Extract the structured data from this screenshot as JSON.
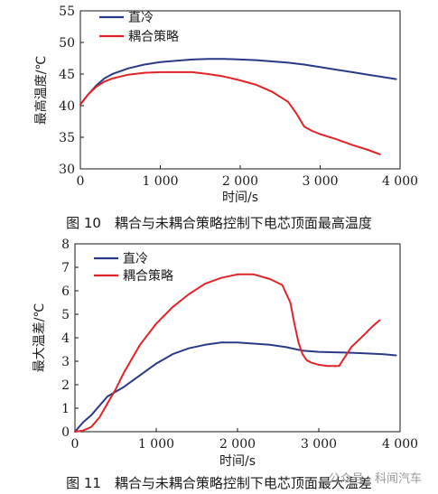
{
  "chart_data": [
    {
      "type": "line",
      "xlabel": "时间/s",
      "ylabel": "最高温度/℃",
      "xlim": [
        0,
        4000
      ],
      "ylim": [
        30,
        55
      ],
      "xticks": [
        0,
        1000,
        2000,
        3000,
        4000
      ],
      "xtick_labels": [
        "0",
        "1 000",
        "2 000",
        "3 000",
        "4 000"
      ],
      "yticks": [
        30,
        35,
        40,
        45,
        50,
        55
      ],
      "grid": false,
      "legend_position": "top-left",
      "series": [
        {
          "name": "直冷",
          "color": "#2b3a87",
          "x": [
            0,
            100,
            200,
            300,
            400,
            600,
            800,
            1000,
            1200,
            1400,
            1600,
            1800,
            2000,
            2200,
            2400,
            2600,
            2800,
            3000,
            3200,
            3400,
            3600,
            3800,
            3950
          ],
          "y": [
            40.2,
            41.8,
            43.2,
            44.3,
            45.0,
            45.9,
            46.5,
            46.9,
            47.1,
            47.3,
            47.4,
            47.4,
            47.3,
            47.2,
            47.0,
            46.8,
            46.5,
            46.1,
            45.7,
            45.3,
            44.9,
            44.5,
            44.2
          ]
        },
        {
          "name": "耦合策略",
          "color": "#e0242a",
          "x": [
            0,
            100,
            200,
            300,
            400,
            600,
            800,
            1000,
            1200,
            1400,
            1600,
            1800,
            2000,
            2200,
            2400,
            2600,
            2700,
            2800,
            2900,
            3000,
            3200,
            3400,
            3600,
            3750
          ],
          "y": [
            40.2,
            41.8,
            43.0,
            43.8,
            44.3,
            44.9,
            45.2,
            45.3,
            45.3,
            45.3,
            45.0,
            44.6,
            44.0,
            43.3,
            42.2,
            40.6,
            38.8,
            36.7,
            36.0,
            35.5,
            34.7,
            33.8,
            33.0,
            32.3
          ]
        }
      ],
      "caption": "图 10　耦合与未耦合策略控制下电芯顶面最高温度"
    },
    {
      "type": "line",
      "xlabel": "时间/s",
      "ylabel": "最大温差/℃",
      "xlim": [
        0,
        4000
      ],
      "ylim": [
        0,
        8
      ],
      "xticks": [
        0,
        1000,
        2000,
        3000,
        4000
      ],
      "xtick_labels": [
        "0",
        "1 000",
        "2 000",
        "3 000",
        "4 000"
      ],
      "yticks": [
        0,
        1,
        2,
        3,
        4,
        5,
        6,
        7,
        8
      ],
      "grid": false,
      "legend_position": "top-left",
      "series": [
        {
          "name": "直冷",
          "color": "#2b3a87",
          "x": [
            0,
            100,
            200,
            300,
            400,
            500,
            600,
            800,
            1000,
            1200,
            1400,
            1600,
            1800,
            2000,
            2200,
            2400,
            2600,
            2800,
            3000,
            3200,
            3400,
            3600,
            3800,
            3950
          ],
          "y": [
            0.0,
            0.4,
            0.7,
            1.1,
            1.5,
            1.7,
            1.9,
            2.4,
            2.9,
            3.3,
            3.55,
            3.7,
            3.8,
            3.8,
            3.75,
            3.7,
            3.6,
            3.45,
            3.4,
            3.38,
            3.36,
            3.33,
            3.3,
            3.25
          ]
        },
        {
          "name": "耦合策略",
          "color": "#e0242a",
          "x": [
            0,
            100,
            200,
            300,
            400,
            500,
            600,
            800,
            1000,
            1200,
            1400,
            1600,
            1800,
            2000,
            2200,
            2400,
            2550,
            2650,
            2700,
            2750,
            2800,
            2850,
            2900,
            3000,
            3100,
            3250,
            3400,
            3550,
            3650,
            3750
          ],
          "y": [
            0.0,
            0.05,
            0.2,
            0.6,
            1.2,
            1.8,
            2.5,
            3.7,
            4.6,
            5.3,
            5.85,
            6.3,
            6.55,
            6.7,
            6.7,
            6.5,
            6.25,
            5.5,
            4.6,
            3.8,
            3.3,
            3.05,
            2.95,
            2.85,
            2.8,
            2.8,
            3.6,
            4.1,
            4.45,
            4.75
          ]
        }
      ],
      "caption": "图 11　耦合与未耦合策略控制下电芯顶面最大温差"
    }
  ],
  "watermark": "公众号 · 科闻汽车"
}
